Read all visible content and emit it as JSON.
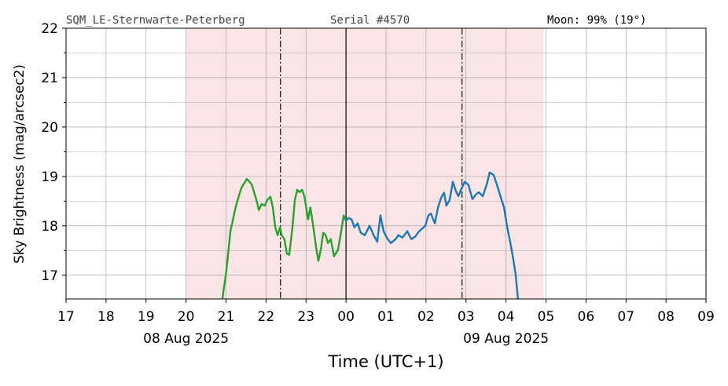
{
  "chart_data": {
    "type": "line",
    "header_left": "SQM_LE-Sternwarte-Peterberg",
    "header_mid": "Serial #4570",
    "header_right": "Moon: 99% (19°)",
    "ylabel": "Sky Brightness (mag/arcsec2)",
    "xlabel": "Time (UTC+1)",
    "date_labels": [
      {
        "x": 20,
        "label": "08 Aug 2025"
      },
      {
        "x": 28,
        "label": "09 Aug 2025"
      }
    ],
    "xlim": [
      17,
      33
    ],
    "ylim": [
      16.52,
      22
    ],
    "xticks": [
      17,
      18,
      19,
      20,
      21,
      22,
      23,
      {
        "value": 24,
        "label": "00"
      },
      {
        "value": 25,
        "label": "01"
      },
      {
        "value": 26,
        "label": "02"
      },
      {
        "value": 27,
        "label": "03"
      },
      {
        "value": 28,
        "label": "04"
      },
      {
        "value": 29,
        "label": "05"
      },
      {
        "value": 30,
        "label": "06"
      },
      {
        "value": 31,
        "label": "07"
      },
      {
        "value": 32,
        "label": "08"
      },
      {
        "value": 33,
        "label": "09"
      }
    ],
    "yticks": [
      17,
      18,
      19,
      20,
      21,
      22
    ],
    "yminor": [
      17.5,
      18.5,
      19.5,
      20.5,
      21.5
    ],
    "grid": true,
    "night_span": [
      20,
      28.94
    ],
    "night_color": "#f9e5e5",
    "twilight_lines": [
      22.36,
      26.9
    ],
    "midnight_line": 24,
    "series": [
      {
        "color": "#2ca02c",
        "x": [
          20.91,
          21.01,
          21.11,
          21.25,
          21.38,
          21.52,
          21.64,
          21.76,
          21.82,
          21.89,
          21.97,
          22.03,
          22.11,
          22.17,
          22.23,
          22.29,
          22.35,
          22.39,
          22.46,
          22.52,
          22.58,
          22.66,
          22.72,
          22.78,
          22.84,
          22.9,
          22.96,
          23.05,
          23.11,
          23.17,
          23.25,
          23.31,
          23.37,
          23.43,
          23.49,
          23.55,
          23.62,
          23.7,
          23.8,
          23.88,
          23.94,
          24.0
        ],
        "values": [
          16.52,
          17.1,
          17.89,
          18.41,
          18.76,
          18.95,
          18.84,
          18.52,
          18.32,
          18.44,
          18.41,
          18.52,
          18.59,
          18.37,
          17.97,
          17.81,
          17.97,
          17.81,
          17.73,
          17.44,
          17.41,
          17.97,
          18.52,
          18.73,
          18.68,
          18.73,
          18.6,
          18.13,
          18.37,
          18.05,
          17.57,
          17.29,
          17.52,
          17.86,
          17.81,
          17.65,
          17.73,
          17.38,
          17.52,
          17.89,
          18.21,
          18.1
        ]
      },
      {
        "color": "#1f77b4",
        "x": [
          24.0,
          24.06,
          24.14,
          24.21,
          24.29,
          24.37,
          24.47,
          24.59,
          24.69,
          24.78,
          24.86,
          24.94,
          25.02,
          25.12,
          25.24,
          25.31,
          25.41,
          25.53,
          25.63,
          25.73,
          25.83,
          25.9,
          25.98,
          26.06,
          26.12,
          26.22,
          26.3,
          26.38,
          26.45,
          26.51,
          26.59,
          26.67,
          26.75,
          26.81,
          26.89,
          26.97,
          27.06,
          27.16,
          27.24,
          27.32,
          27.42,
          27.52,
          27.59,
          27.69,
          27.77,
          27.85,
          27.95,
          28.03,
          28.11,
          28.18,
          28.24,
          28.3
        ],
        "values": [
          18.1,
          18.16,
          18.13,
          17.97,
          18.05,
          17.86,
          17.81,
          18.0,
          17.81,
          17.68,
          18.21,
          17.89,
          17.76,
          17.65,
          17.73,
          17.81,
          17.76,
          17.89,
          17.73,
          17.78,
          17.89,
          17.94,
          18.0,
          18.21,
          18.25,
          18.05,
          18.37,
          18.57,
          18.67,
          18.41,
          18.52,
          18.89,
          18.7,
          18.6,
          18.76,
          18.89,
          18.83,
          18.54,
          18.63,
          18.68,
          18.6,
          18.84,
          19.08,
          19.03,
          18.84,
          18.63,
          18.37,
          17.97,
          17.65,
          17.33,
          17.02,
          16.52
        ]
      }
    ]
  }
}
